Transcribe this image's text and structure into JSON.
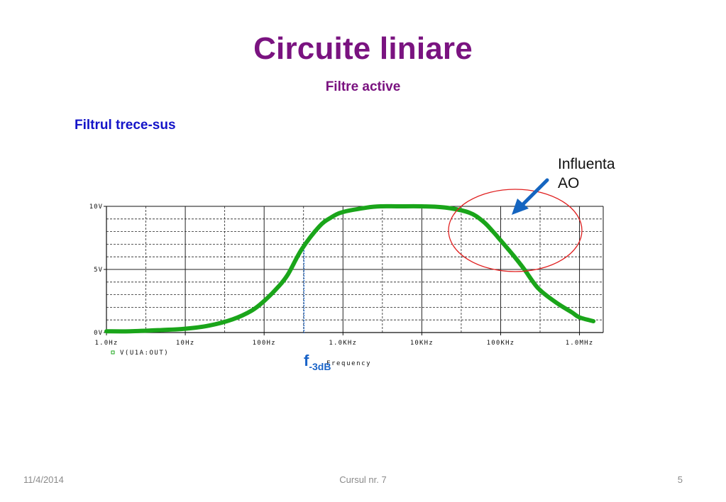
{
  "slide": {
    "title": "Circuite liniare",
    "subtitle": "Filtre active",
    "heading": "Filtrul trece-sus"
  },
  "annotation": {
    "line1": "Influenta",
    "line2": "AO",
    "circle_color": "#e02020",
    "arrow_color": "#1565c0"
  },
  "marker": {
    "label": "f",
    "subscript": "-3dB",
    "frequency_hz": 320,
    "color": "#1a64c8"
  },
  "colors": {
    "title": "#7a1380",
    "heading": "#1414c8",
    "curve": "#1aa51a",
    "footer": "#8a8a8a"
  },
  "chart_data": {
    "type": "line",
    "x_scale": "log",
    "xlim_hz": [
      1,
      2000000
    ],
    "ylim": [
      0,
      10
    ],
    "grid": true,
    "x_ticks": [
      {
        "value": 1,
        "label": "1.0Hz"
      },
      {
        "value": 10,
        "label": "10Hz"
      },
      {
        "value": 100,
        "label": "100Hz"
      },
      {
        "value": 1000,
        "label": "1.0KHz"
      },
      {
        "value": 10000,
        "label": "10KHz"
      },
      {
        "value": 100000,
        "label": "100KHz"
      },
      {
        "value": 1000000,
        "label": "1.0MHz"
      }
    ],
    "y_ticks": [
      {
        "value": 10,
        "label": "10V"
      },
      {
        "value": 5,
        "label": "5V"
      },
      {
        "value": 0,
        "label": "0V"
      }
    ],
    "xlabel": "Frequency",
    "legend_label": "V(U1A:OUT)",
    "series": [
      {
        "name": "V(U1A:OUT)",
        "x": [
          1,
          2,
          5,
          10,
          20,
          40,
          70,
          100,
          150,
          200,
          300,
          500,
          700,
          1000,
          2000,
          3000,
          5000,
          10000,
          20000,
          40000,
          60000,
          80000,
          100000,
          150000,
          200000,
          300000,
          500000,
          800000,
          1000000,
          1500000
        ],
        "y": [
          0.1,
          0.1,
          0.2,
          0.3,
          0.55,
          1.05,
          1.75,
          2.5,
          3.6,
          4.6,
          6.6,
          8.4,
          9.1,
          9.55,
          9.9,
          10.0,
          10.0,
          10.0,
          9.9,
          9.5,
          8.8,
          8.0,
          7.3,
          6.0,
          5.0,
          3.5,
          2.4,
          1.6,
          1.2,
          0.9
        ]
      }
    ]
  },
  "footer": {
    "date": "11/4/2014",
    "course": "Cursul nr. 7",
    "page": "5"
  }
}
